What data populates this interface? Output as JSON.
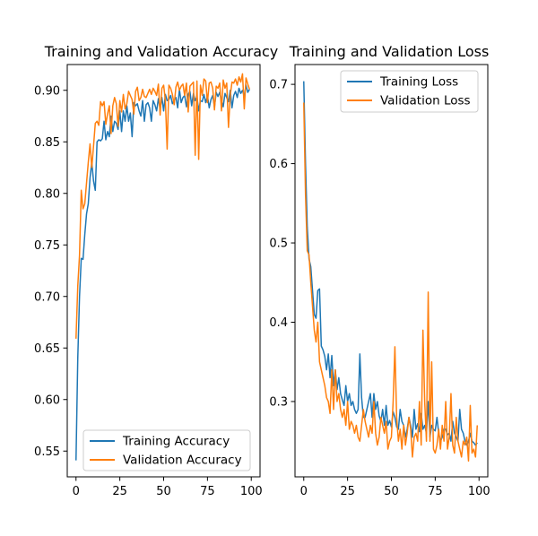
{
  "chart_data": [
    {
      "type": "line",
      "title": "Training and Validation Accuracy",
      "xlabel": "",
      "ylabel": "",
      "xlim": [
        -5,
        105
      ],
      "ylim": [
        0.525,
        0.925
      ],
      "xticks": [
        0,
        25,
        50,
        75,
        100
      ],
      "yticks": [
        0.55,
        0.6,
        0.65,
        0.7,
        0.75,
        0.8,
        0.85,
        0.9
      ],
      "ytick_labels": [
        "0.55",
        "0.60",
        "0.65",
        "0.70",
        "0.75",
        "0.80",
        "0.85",
        "0.90"
      ],
      "xtick_labels": [
        "0",
        "25",
        "50",
        "75",
        "100"
      ],
      "legend": "lower-right",
      "grid": false,
      "series": [
        {
          "name": "Training Accuracy",
          "color": "#1f77b4",
          "x": [
            0,
            1,
            2,
            3,
            4,
            5,
            6,
            7,
            8,
            9,
            10,
            11,
            12,
            13,
            14,
            15,
            16,
            17,
            18,
            19,
            20,
            21,
            22,
            23,
            24,
            25,
            26,
            27,
            28,
            29,
            30,
            31,
            32,
            33,
            34,
            35,
            36,
            37,
            38,
            39,
            40,
            41,
            42,
            43,
            44,
            45,
            46,
            47,
            48,
            49,
            50,
            51,
            52,
            53,
            54,
            55,
            56,
            57,
            58,
            59,
            60,
            61,
            62,
            63,
            64,
            65,
            66,
            67,
            68,
            69,
            70,
            71,
            72,
            73,
            74,
            75,
            76,
            77,
            78,
            79,
            80,
            81,
            82,
            83,
            84,
            85,
            86,
            87,
            88,
            89,
            90,
            91,
            92,
            93,
            94,
            95,
            96,
            97,
            98,
            99
          ],
          "y": [
            0.541,
            0.64,
            0.7,
            0.737,
            0.736,
            0.76,
            0.78,
            0.79,
            0.815,
            0.83,
            0.812,
            0.803,
            0.85,
            0.852,
            0.851,
            0.853,
            0.87,
            0.852,
            0.86,
            0.855,
            0.875,
            0.86,
            0.87,
            0.868,
            0.862,
            0.88,
            0.86,
            0.88,
            0.87,
            0.885,
            0.87,
            0.878,
            0.855,
            0.888,
            0.885,
            0.887,
            0.88,
            0.875,
            0.89,
            0.87,
            0.886,
            0.888,
            0.883,
            0.87,
            0.89,
            0.886,
            0.88,
            0.892,
            0.882,
            0.893,
            0.88,
            0.896,
            0.89,
            0.891,
            0.895,
            0.887,
            0.89,
            0.893,
            0.883,
            0.901,
            0.888,
            0.893,
            0.895,
            0.884,
            0.896,
            0.899,
            0.885,
            0.897,
            0.89,
            0.894,
            0.88,
            0.89,
            0.889,
            0.896,
            0.888,
            0.895,
            0.883,
            0.891,
            0.895,
            0.884,
            0.898,
            0.894,
            0.898,
            0.89,
            0.884,
            0.897,
            0.893,
            0.889,
            0.9,
            0.883,
            0.895,
            0.899,
            0.893,
            0.902,
            0.897,
            0.9,
            0.894,
            0.905,
            0.898,
            0.901
          ]
        },
        {
          "name": "Validation Accuracy",
          "color": "#ff7f0e",
          "x": [
            0,
            1,
            2,
            3,
            4,
            5,
            6,
            7,
            8,
            9,
            10,
            11,
            12,
            13,
            14,
            15,
            16,
            17,
            18,
            19,
            20,
            21,
            22,
            23,
            24,
            25,
            26,
            27,
            28,
            29,
            30,
            31,
            32,
            33,
            34,
            35,
            36,
            37,
            38,
            39,
            40,
            41,
            42,
            43,
            44,
            45,
            46,
            47,
            48,
            49,
            50,
            51,
            52,
            53,
            54,
            55,
            56,
            57,
            58,
            59,
            60,
            61,
            62,
            63,
            64,
            65,
            66,
            67,
            68,
            69,
            70,
            71,
            72,
            73,
            74,
            75,
            76,
            77,
            78,
            79,
            80,
            81,
            82,
            83,
            84,
            85,
            86,
            87,
            88,
            89,
            90,
            91,
            92,
            93,
            94,
            95,
            96,
            97,
            98,
            99
          ],
          "y": [
            0.659,
            0.71,
            0.74,
            0.803,
            0.785,
            0.79,
            0.81,
            0.83,
            0.848,
            0.825,
            0.846,
            0.868,
            0.87,
            0.866,
            0.889,
            0.885,
            0.889,
            0.867,
            0.877,
            0.885,
            0.858,
            0.885,
            0.893,
            0.887,
            0.865,
            0.89,
            0.879,
            0.896,
            0.882,
            0.887,
            0.899,
            0.895,
            0.891,
            0.877,
            0.899,
            0.903,
            0.89,
            0.893,
            0.901,
            0.894,
            0.893,
            0.897,
            0.901,
            0.896,
            0.902,
            0.899,
            0.895,
            0.906,
            0.876,
            0.902,
            0.905,
            0.89,
            0.843,
            0.905,
            0.902,
            0.896,
            0.886,
            0.903,
            0.908,
            0.9,
            0.904,
            0.906,
            0.895,
            0.907,
            0.879,
            0.904,
            0.906,
            0.908,
            0.837,
            0.909,
            0.833,
            0.905,
            0.895,
            0.911,
            0.909,
            0.888,
            0.907,
            0.908,
            0.902,
            0.881,
            0.904,
            0.902,
            0.907,
            0.88,
            0.91,
            0.902,
            0.907,
            0.864,
            0.895,
            0.908,
            0.907,
            0.911,
            0.905,
            0.913,
            0.908,
            0.916,
            0.882,
            0.912,
            0.906,
            0.901
          ]
        }
      ]
    },
    {
      "type": "line",
      "title": "Training and Validation Loss",
      "xlabel": "",
      "ylabel": "",
      "xlim": [
        -5,
        105
      ],
      "ylim": [
        0.205,
        0.725
      ],
      "xticks": [
        0,
        25,
        50,
        75,
        100
      ],
      "yticks": [
        0.3,
        0.4,
        0.5,
        0.6,
        0.7
      ],
      "ytick_labels": [
        "0.3",
        "0.4",
        "0.5",
        "0.6",
        "0.7"
      ],
      "xtick_labels": [
        "0",
        "25",
        "50",
        "75",
        "100"
      ],
      "legend": "top-right",
      "grid": false,
      "series": [
        {
          "name": "Training Loss",
          "color": "#1f77b4",
          "x": [
            0,
            1,
            2,
            3,
            4,
            5,
            6,
            7,
            8,
            9,
            10,
            11,
            12,
            13,
            14,
            15,
            16,
            17,
            18,
            19,
            20,
            21,
            22,
            23,
            24,
            25,
            26,
            27,
            28,
            29,
            30,
            31,
            32,
            33,
            34,
            35,
            36,
            37,
            38,
            39,
            40,
            41,
            42,
            43,
            44,
            45,
            46,
            47,
            48,
            49,
            50,
            51,
            52,
            53,
            54,
            55,
            56,
            57,
            58,
            59,
            60,
            61,
            62,
            63,
            64,
            65,
            66,
            67,
            68,
            69,
            70,
            71,
            72,
            73,
            74,
            75,
            76,
            77,
            78,
            79,
            80,
            81,
            82,
            83,
            84,
            85,
            86,
            87,
            88,
            89,
            90,
            91,
            92,
            93,
            94,
            95,
            96,
            97,
            98,
            99
          ],
          "y": [
            0.704,
            0.6,
            0.52,
            0.48,
            0.47,
            0.44,
            0.41,
            0.405,
            0.44,
            0.442,
            0.37,
            0.365,
            0.357,
            0.34,
            0.36,
            0.33,
            0.358,
            0.32,
            0.34,
            0.315,
            0.33,
            0.31,
            0.302,
            0.295,
            0.32,
            0.3,
            0.31,
            0.295,
            0.3,
            0.29,
            0.285,
            0.29,
            0.36,
            0.305,
            0.28,
            0.28,
            0.29,
            0.3,
            0.31,
            0.28,
            0.31,
            0.29,
            0.3,
            0.282,
            0.275,
            0.29,
            0.27,
            0.295,
            0.27,
            0.276,
            0.268,
            0.287,
            0.28,
            0.268,
            0.265,
            0.29,
            0.275,
            0.27,
            0.255,
            0.265,
            0.28,
            0.27,
            0.255,
            0.29,
            0.265,
            0.272,
            0.262,
            0.285,
            0.265,
            0.27,
            0.26,
            0.3,
            0.255,
            0.27,
            0.265,
            0.263,
            0.28,
            0.26,
            0.25,
            0.255,
            0.265,
            0.265,
            0.258,
            0.26,
            0.25,
            0.275,
            0.26,
            0.255,
            0.25,
            0.29,
            0.265,
            0.26,
            0.25,
            0.245,
            0.25,
            0.26,
            0.25,
            0.248,
            0.245,
            0.248
          ]
        },
        {
          "name": "Validation Loss",
          "color": "#ff7f0e",
          "x": [
            0,
            1,
            2,
            3,
            4,
            5,
            6,
            7,
            8,
            9,
            10,
            11,
            12,
            13,
            14,
            15,
            16,
            17,
            18,
            19,
            20,
            21,
            22,
            23,
            24,
            25,
            26,
            27,
            28,
            29,
            30,
            31,
            32,
            33,
            34,
            35,
            36,
            37,
            38,
            39,
            40,
            41,
            42,
            43,
            44,
            45,
            46,
            47,
            48,
            49,
            50,
            51,
            52,
            53,
            54,
            55,
            56,
            57,
            58,
            59,
            60,
            61,
            62,
            63,
            64,
            65,
            66,
            67,
            68,
            69,
            70,
            71,
            72,
            73,
            74,
            75,
            76,
            77,
            78,
            79,
            80,
            81,
            82,
            83,
            84,
            85,
            86,
            87,
            88,
            89,
            90,
            91,
            92,
            93,
            94,
            95,
            96,
            97,
            98,
            99
          ],
          "y": [
            0.677,
            0.56,
            0.49,
            0.485,
            0.45,
            0.42,
            0.39,
            0.375,
            0.4,
            0.35,
            0.34,
            0.33,
            0.32,
            0.305,
            0.3,
            0.285,
            0.34,
            0.29,
            0.34,
            0.3,
            0.31,
            0.29,
            0.28,
            0.29,
            0.27,
            0.3,
            0.265,
            0.275,
            0.27,
            0.26,
            0.27,
            0.255,
            0.25,
            0.27,
            0.29,
            0.275,
            0.265,
            0.255,
            0.27,
            0.26,
            0.3,
            0.26,
            0.245,
            0.255,
            0.28,
            0.27,
            0.26,
            0.275,
            0.24,
            0.25,
            0.255,
            0.3,
            0.369,
            0.28,
            0.25,
            0.265,
            0.24,
            0.27,
            0.245,
            0.26,
            0.28,
            0.265,
            0.23,
            0.255,
            0.26,
            0.25,
            0.3,
            0.245,
            0.39,
            0.3,
            0.25,
            0.438,
            0.25,
            0.35,
            0.24,
            0.235,
            0.245,
            0.265,
            0.24,
            0.27,
            0.25,
            0.3,
            0.24,
            0.255,
            0.31,
            0.245,
            0.235,
            0.28,
            0.25,
            0.24,
            0.23,
            0.25,
            0.245,
            0.255,
            0.225,
            0.295,
            0.235,
            0.24,
            0.23,
            0.27
          ]
        }
      ]
    }
  ]
}
